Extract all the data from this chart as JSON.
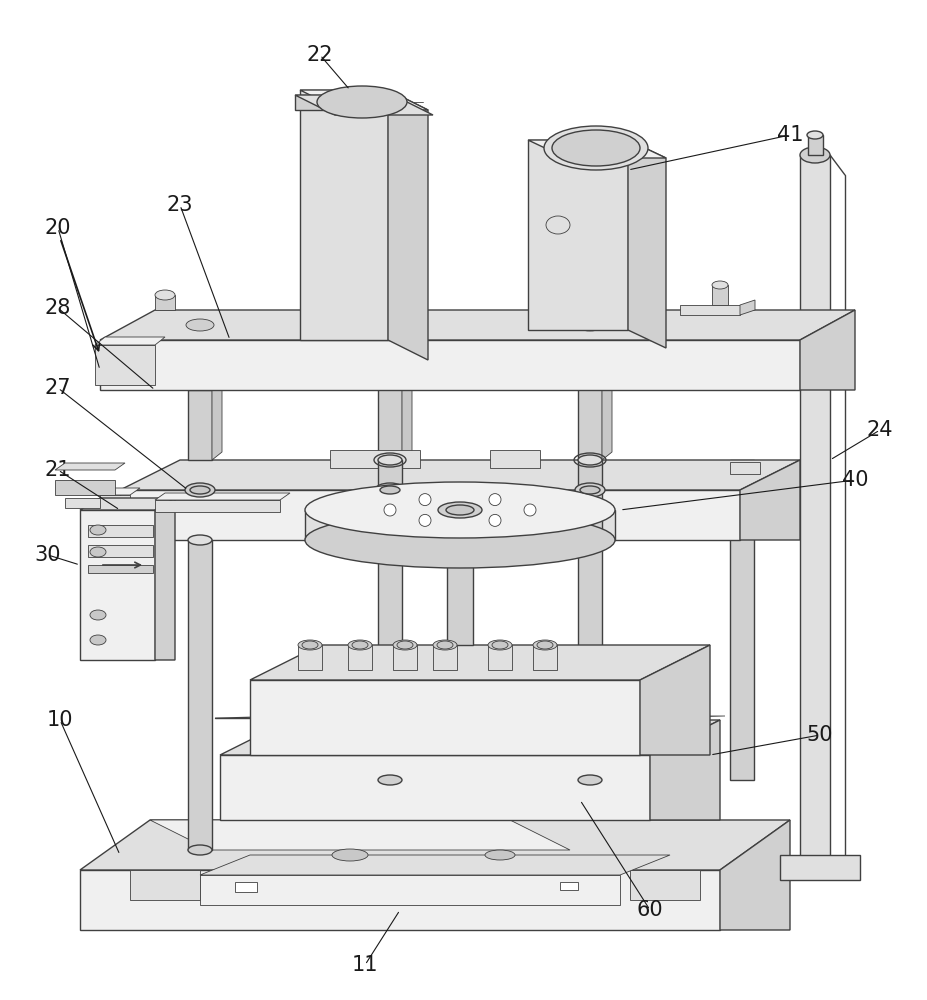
{
  "bg_color": "#ffffff",
  "lc": "#404040",
  "lc2": "#606060",
  "lw": 1.0,
  "tlw": 0.6,
  "thw": 1.4,
  "fig_w": 9.27,
  "fig_h": 10.0,
  "shade1": "#f0f0f0",
  "shade2": "#e0e0e0",
  "shade3": "#d0d0d0",
  "shade4": "#c8c8c8",
  "shade5": "#b8b8b8"
}
